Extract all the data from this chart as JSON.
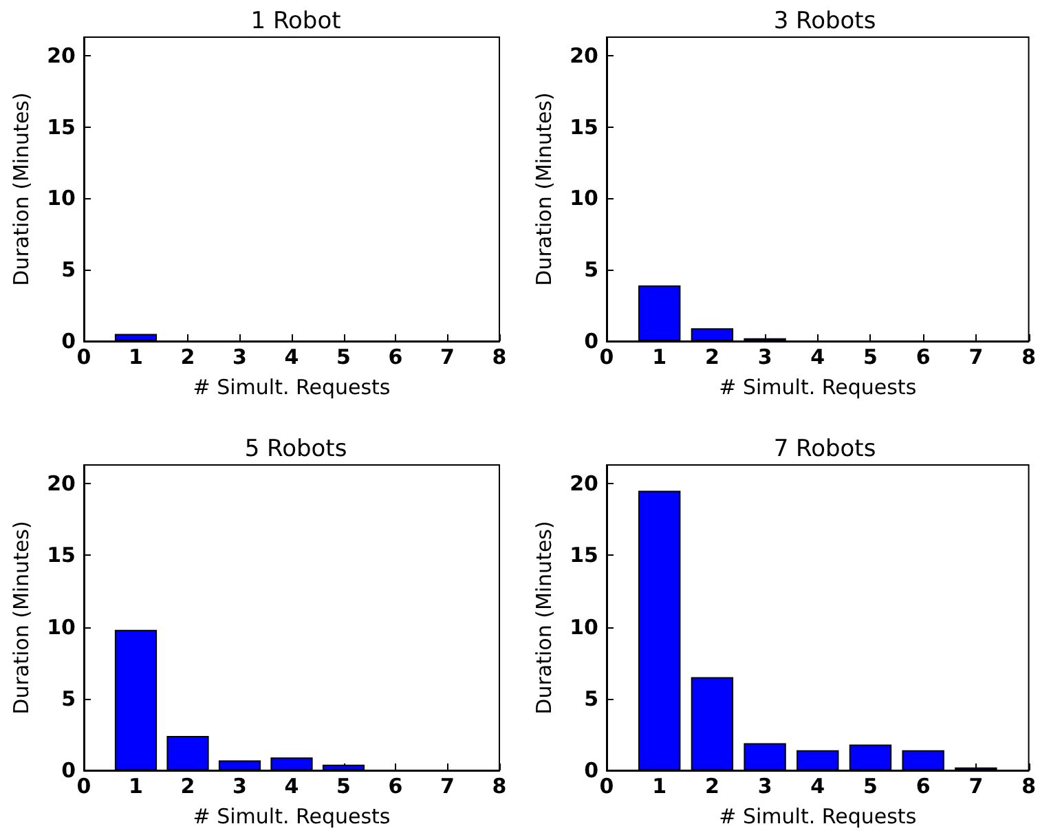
{
  "chart_data": [
    {
      "type": "bar",
      "title": "1 Robot",
      "xlabel": "# Simult. Requests",
      "ylabel": "Duration (Minutes)",
      "x": [
        1
      ],
      "values": [
        0.5
      ],
      "color": "#0000ff",
      "xlim": [
        0,
        8
      ],
      "xticks": [
        0,
        1,
        2,
        3,
        4,
        5,
        6,
        7,
        8
      ],
      "ylim": [
        0,
        21.3
      ],
      "yticks": [
        0,
        5,
        10,
        15,
        20
      ]
    },
    {
      "type": "bar",
      "title": "3 Robots",
      "xlabel": "# Simult. Requests",
      "ylabel": "Duration (Minutes)",
      "x": [
        1,
        2,
        3
      ],
      "values": [
        3.9,
        0.9,
        0.2
      ],
      "color": "#0000ff",
      "xlim": [
        0,
        8
      ],
      "xticks": [
        0,
        1,
        2,
        3,
        4,
        5,
        6,
        7,
        8
      ],
      "ylim": [
        0,
        21.3
      ],
      "yticks": [
        0,
        5,
        10,
        15,
        20
      ]
    },
    {
      "type": "bar",
      "title": "5 Robots",
      "xlabel": "# Simult. Requests",
      "ylabel": "Duration (Minutes)",
      "x": [
        1,
        2,
        3,
        4,
        5
      ],
      "values": [
        9.8,
        2.4,
        0.7,
        0.9,
        0.4
      ],
      "color": "#0000ff",
      "xlim": [
        0,
        8
      ],
      "xticks": [
        0,
        1,
        2,
        3,
        4,
        5,
        6,
        7,
        8
      ],
      "ylim": [
        0,
        21.3
      ],
      "yticks": [
        0,
        5,
        10,
        15,
        20
      ]
    },
    {
      "type": "bar",
      "title": "7 Robots",
      "xlabel": "# Simult. Requests",
      "ylabel": "Duration (Minutes)",
      "x": [
        1,
        2,
        3,
        4,
        5,
        6,
        7
      ],
      "values": [
        19.5,
        6.5,
        1.9,
        1.4,
        1.8,
        1.4,
        0.2
      ],
      "color": "#0000ff",
      "xlim": [
        0,
        8
      ],
      "xticks": [
        0,
        1,
        2,
        3,
        4,
        5,
        6,
        7,
        8
      ],
      "ylim": [
        0,
        21.3
      ],
      "yticks": [
        0,
        5,
        10,
        15,
        20
      ]
    }
  ]
}
